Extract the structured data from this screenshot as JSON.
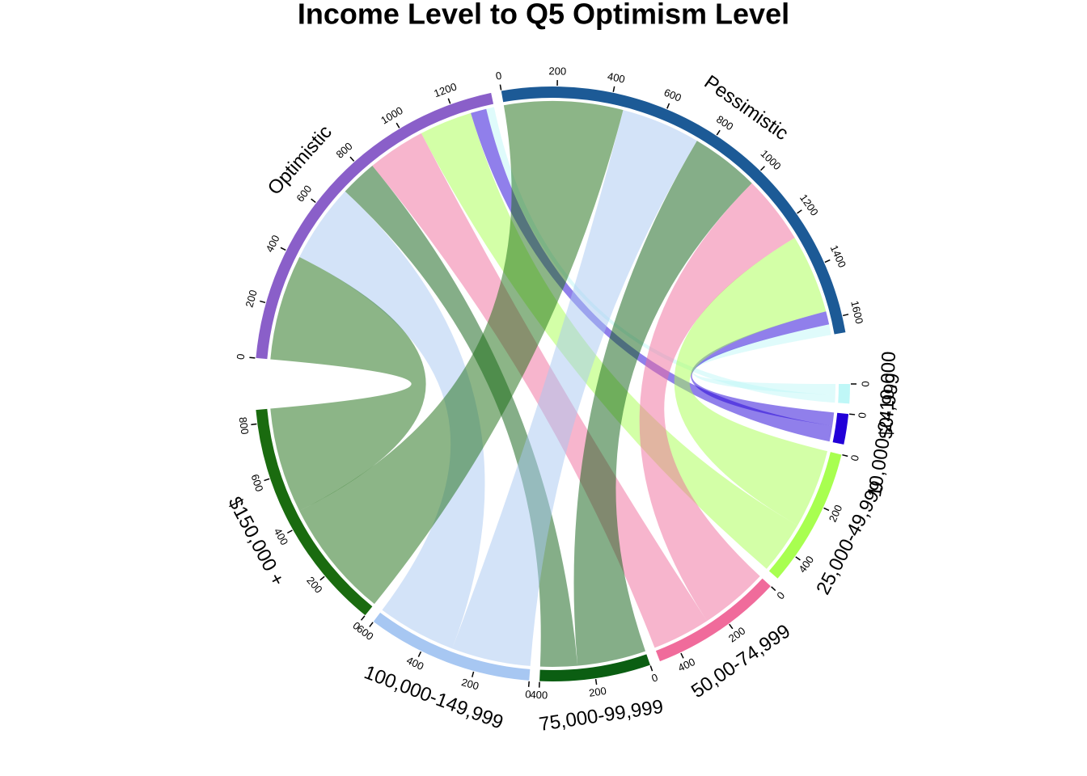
{
  "chart_data": {
    "type": "chord",
    "title": "Income Level to Q5 Optimism Level",
    "categories": [
      "$0-10,000",
      "10,000-24,999",
      "25,000-49,999",
      "50,00-74,999",
      "75,000-99,999",
      "100,000-149,999",
      "$150,000 +"
    ],
    "category_colors": [
      "#bff7f7",
      "#2200d8",
      "#a8ff50",
      "#f06b9b",
      "#0b5e12",
      "#a7c7f2",
      "#1a6b0f"
    ],
    "category_ticks": [
      [
        0
      ],
      [
        0
      ],
      [
        0,
        200,
        400
      ],
      [
        0,
        200,
        400
      ],
      [
        0,
        200,
        400
      ],
      [
        0,
        200,
        400,
        600
      ],
      [
        0,
        200,
        400,
        600,
        800
      ]
    ],
    "series": [
      {
        "name": "Optimistic",
        "color": "#8a5fc9",
        "values": [
          30,
          60,
          200,
          220,
          140,
          300,
          400
        ],
        "ticks": [
          0,
          200,
          400,
          600,
          800,
          1000,
          1200
        ]
      },
      {
        "name": "Pessimistic",
        "color": "#1c5a96",
        "values": [
          40,
          50,
          300,
          260,
          260,
          300,
          450
        ],
        "ticks": [
          0,
          200,
          400,
          600,
          800,
          1000,
          1200,
          1400,
          1600
        ]
      }
    ]
  }
}
